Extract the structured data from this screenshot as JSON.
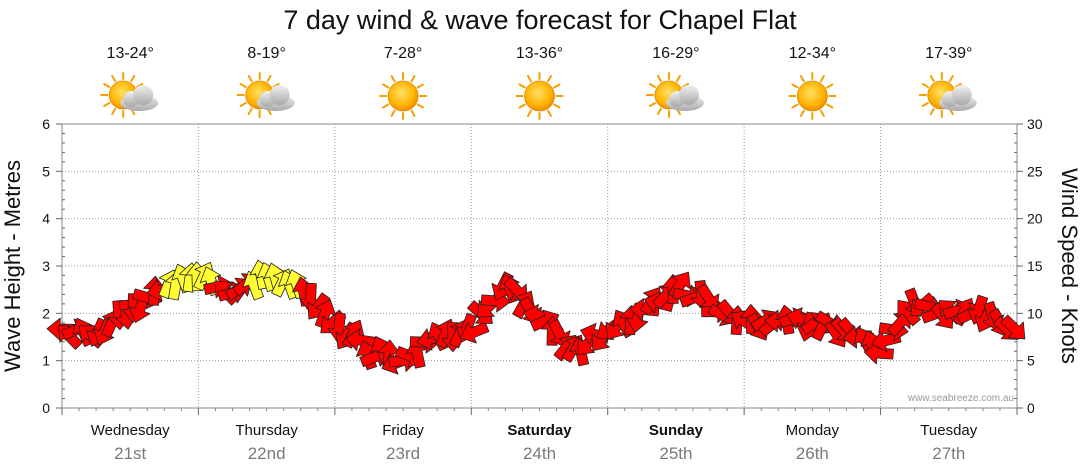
{
  "chart_data": {
    "type": "line",
    "title": "7 day wind & wave forecast for Chapel Flat",
    "ylabel_left": "Wave Height - Metres",
    "ylabel_right": "Wind Speed - Knots",
    "ylim_left": [
      0,
      6
    ],
    "ylim_right": [
      0,
      30
    ],
    "yticks_left": [
      "0",
      "1",
      "2",
      "3",
      "4",
      "5",
      "6"
    ],
    "yticks_right": [
      "0",
      "5",
      "10",
      "15",
      "20",
      "25",
      "30"
    ],
    "days": [
      {
        "name": "Wednesday",
        "date": "21st",
        "temp": "13-24°",
        "weather": "partly-cloudy",
        "bold": false
      },
      {
        "name": "Thursday",
        "date": "22nd",
        "temp": "8-19°",
        "weather": "partly-cloudy",
        "bold": false
      },
      {
        "name": "Friday",
        "date": "23rd",
        "temp": "7-28°",
        "weather": "sunny",
        "bold": false
      },
      {
        "name": "Saturday",
        "date": "24th",
        "temp": "13-36°",
        "weather": "sunny",
        "bold": true
      },
      {
        "name": "Sunday",
        "date": "25th",
        "temp": "16-29°",
        "weather": "partly-cloudy",
        "bold": true
      },
      {
        "name": "Monday",
        "date": "26th",
        "temp": "12-34°",
        "weather": "sunny",
        "bold": false
      },
      {
        "name": "Tuesday",
        "date": "27th",
        "temp": "17-39°",
        "weather": "partly-cloudy",
        "bold": false
      }
    ],
    "wind_series": {
      "name": "Wind speed (knots)",
      "unit": "knots",
      "x_hours": [
        0,
        6,
        12,
        18,
        24,
        30,
        36,
        42,
        48,
        54,
        60,
        66,
        72,
        78,
        84,
        90,
        96,
        102,
        108,
        114,
        120,
        126,
        132,
        138,
        144,
        150,
        156,
        162,
        168
      ],
      "values": [
        8,
        8,
        10,
        13,
        14,
        12,
        14,
        13,
        9,
        6,
        5,
        8,
        8,
        13,
        10,
        6,
        8,
        10,
        13,
        11,
        9,
        9,
        9,
        8,
        6,
        11,
        10,
        10,
        8
      ],
      "strong_threshold": 13
    },
    "colors": {
      "light_wind": "#ff0000",
      "strong_wind": "#ffff33",
      "arrow_stroke": "#222222",
      "grid": "#9a9a9a",
      "chart_border": "#888888",
      "sun": "#ffb000",
      "cloud": "#d0d0d0"
    },
    "watermark": "www.seabreeze.com.au"
  }
}
